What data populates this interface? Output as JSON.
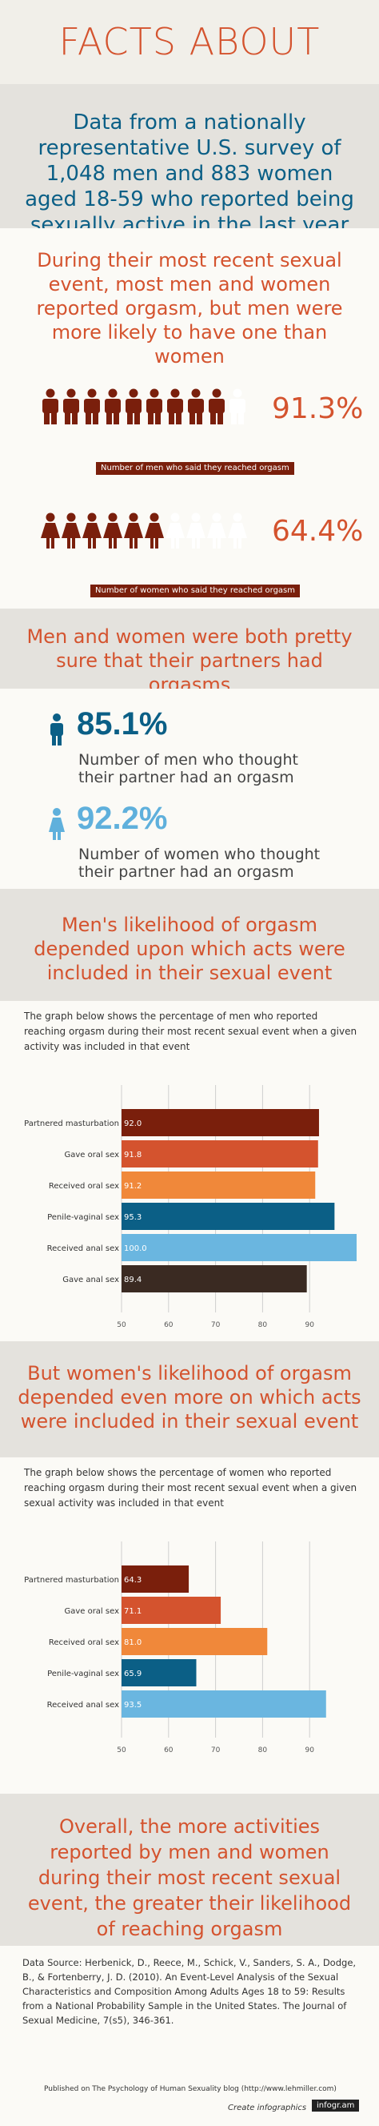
{
  "title": "FACTS ABOUT ORGASM",
  "intro": "Data from a nationally representative U.S. survey of 1,048 men and 883 women aged 18-59 who reported being sexually active in the last year",
  "section1": {
    "heading": "During their most recent sexual event, most men and women reported orgasm, but men were more likely to have one than women",
    "men_pct": "91.3%",
    "men_caption": "Number of men who said they reached orgasm",
    "women_pct": "64.4%",
    "women_caption": "Number of women who said they reached orgasm",
    "men_filled": 9.13,
    "women_filled": 6.44
  },
  "section2": {
    "heading": "Men and women were both pretty sure that their partners had orgasms",
    "men_pct": "85.1%",
    "men_text": "Number of men who thought their partner had an orgasm",
    "women_pct": "92.2%",
    "women_text": "Number of women who thought their partner had an orgasm"
  },
  "section3": {
    "heading": "Men's likelihood of orgasm depended upon which acts were included in their sexual event",
    "desc": "The graph below shows the percentage of men who reported reaching orgasm during their most recent sexual event when a given activity was included in that event"
  },
  "section4": {
    "heading": "But women's likelihood of orgasm depended even more on which acts were included in their sexual event",
    "desc": "The graph below shows the percentage of women who reported reaching orgasm during their most recent sexual event when a given sexual activity was included in that event"
  },
  "conclusion": "Overall, the more activities reported by men and women during their most recent sexual event, the greater their likelihood of reaching orgasm",
  "footer": {
    "source": "Data Source: Herbenick, D., Reece, M., Schick, V., Sanders, S. A., Dodge, B., & Fortenberry, J. D. (2010). An Event-Level Analysis of the Sexual Characteristics and Composition Among Adults Ages 18 to 59: Results from a National Probability Sample in the United States. The Journal of Sexual Medicine, 7(s5), 346-361.",
    "published": "Published on The Psychology of Human Sexuality blog (http://www.lehmiller.com)",
    "create": "Create infographics",
    "brand": "infogr.am"
  },
  "colors": {
    "orange": "#d4532e",
    "maroon": "#7a1f0c",
    "blue": "#0b5f86",
    "lightblue": "#5fb0dc"
  },
  "chart_data": [
    {
      "type": "bar",
      "orientation": "horizontal",
      "categories": [
        "Partnered masturbation",
        "Gave oral sex",
        "Received oral sex",
        "Penile-vaginal sex",
        "Received anal sex",
        "Gave anal sex"
      ],
      "values": [
        92.0,
        91.8,
        91.2,
        95.3,
        100.0,
        89.4
      ],
      "value_labels": [
        "92.0",
        "91.8",
        "91.2",
        "95.3",
        "100.0",
        "89.4"
      ],
      "colors": [
        "#7a1f0c",
        "#d4532e",
        "#f0883a",
        "#0b5f86",
        "#6ab6e0",
        "#3a2a22"
      ],
      "xlim": [
        50,
        100
      ],
      "ticks": [
        "50",
        "60",
        "70",
        "80",
        "90"
      ],
      "tick_values": [
        50,
        60,
        70,
        80,
        90
      ],
      "grid": true
    },
    {
      "type": "bar",
      "orientation": "horizontal",
      "categories": [
        "Partnered masturbation",
        "Gave oral sex",
        "Received oral sex",
        "Penile-vaginal sex",
        "Received anal sex"
      ],
      "values": [
        64.3,
        71.1,
        81.0,
        65.9,
        93.5
      ],
      "value_labels": [
        "64.3",
        "71.1",
        "81.0",
        "65.9",
        "93.5"
      ],
      "colors": [
        "#7a1f0c",
        "#d4532e",
        "#f0883a",
        "#0b5f86",
        "#6ab6e0"
      ],
      "xlim": [
        50,
        100
      ],
      "ticks": [
        "50",
        "60",
        "70",
        "80",
        "90"
      ],
      "tick_values": [
        50,
        60,
        70,
        80,
        90
      ],
      "grid": true
    }
  ]
}
